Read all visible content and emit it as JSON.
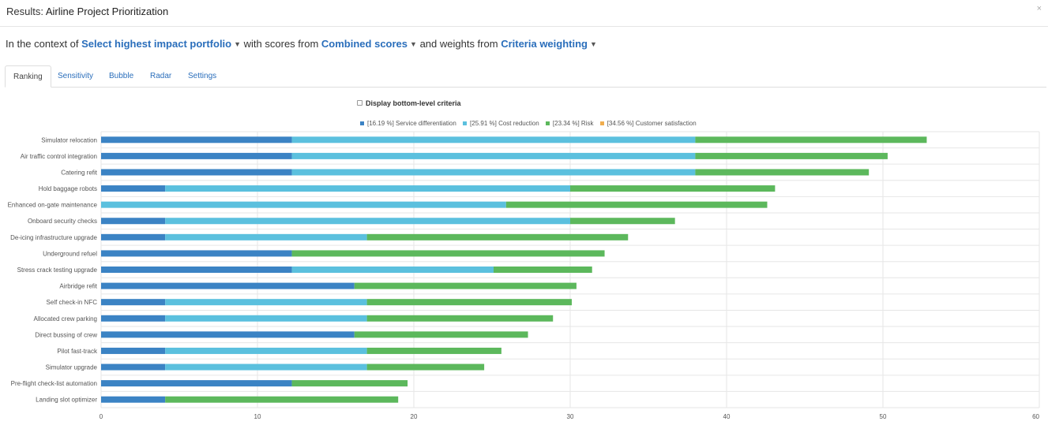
{
  "header": {
    "prefix": "Results:",
    "title": "Airline Project Prioritization",
    "close": "×"
  },
  "context": {
    "text1": "In the context of",
    "portfolio": "Select highest impact portfolio",
    "text2": "with scores from",
    "scores": "Combined scores",
    "text3": "and weights from",
    "weights": "Criteria weighting"
  },
  "tabs": [
    "Ranking",
    "Sensitivity",
    "Bubble",
    "Radar",
    "Settings"
  ],
  "active_tab": "Ranking",
  "options": {
    "bottom_level_label": "Display bottom-level criteria",
    "bottom_level_checked": false
  },
  "colors": {
    "service": "#3b83c4",
    "cost": "#5bc0de",
    "risk": "#5cb85c",
    "customer": "#f0ad4e",
    "link": "#2a6ebb"
  },
  "chart_data": {
    "type": "bar",
    "orientation": "horizontal",
    "stacked": true,
    "categories": [
      "Simulator relocation",
      "Air traffic control integration",
      "Catering refit",
      "Hold baggage robots",
      "Enhanced on-gate maintenance",
      "Onboard security checks",
      "De-icing infrastructure upgrade",
      "Underground refuel",
      "Stress crack testing upgrade",
      "Airbridge refit",
      "Self check-in NFC",
      "Allocated crew parking",
      "Direct bussing of crew",
      "Pilot fast-track",
      "Simulator upgrade",
      "Pre-flight check-list automation",
      "Landing slot optimizer"
    ],
    "series": [
      {
        "name": "[16.19 %] Service differentiation",
        "values": [
          12.2,
          12.2,
          12.2,
          4.1,
          0,
          4.1,
          4.1,
          12.2,
          12.2,
          16.2,
          4.1,
          4.1,
          16.2,
          4.1,
          4.1,
          12.2,
          4.1
        ]
      },
      {
        "name": "[25.91 %] Cost reduction",
        "values": [
          25.8,
          25.8,
          25.8,
          25.9,
          25.9,
          25.9,
          12.9,
          0,
          12.9,
          0,
          12.9,
          12.9,
          0,
          12.9,
          12.9,
          0,
          0
        ]
      },
      {
        "name": "[23.34 %] Risk",
        "values": [
          14.8,
          12.3,
          11.1,
          13.1,
          16.7,
          6.7,
          16.7,
          20.0,
          6.3,
          14.2,
          13.1,
          11.9,
          11.1,
          8.6,
          7.5,
          7.4,
          14.9
        ]
      },
      {
        "name": "[34.56 %] Customer satisfaction",
        "values": [
          0,
          0,
          0,
          0,
          0,
          0,
          0,
          0,
          0,
          0,
          0,
          0,
          0,
          0,
          0,
          0,
          0
        ]
      }
    ],
    "xlim": [
      0,
      60
    ],
    "xticks": [
      0,
      10,
      20,
      30,
      40,
      50,
      60
    ],
    "grid": true,
    "legend": "top-center"
  }
}
